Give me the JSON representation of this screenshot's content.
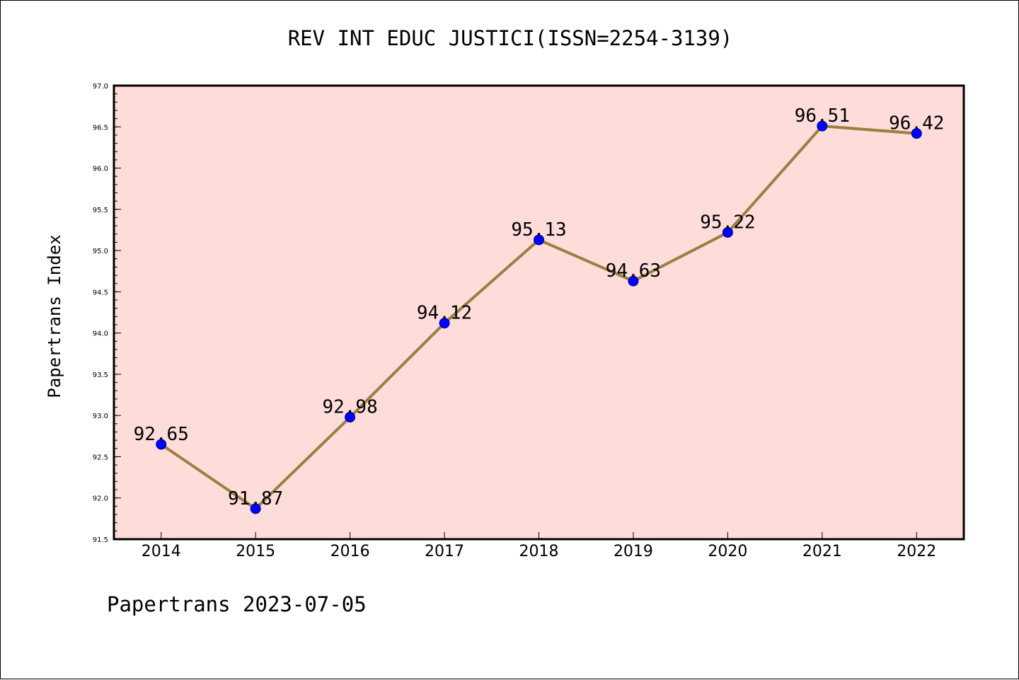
{
  "chart_data": {
    "type": "line",
    "title": "REV INT EDUC JUSTICI(ISSN=2254-3139)",
    "ylabel": "Papertrans Index",
    "xlabel": "",
    "categories": [
      "2014",
      "2015",
      "2016",
      "2017",
      "2018",
      "2019",
      "2020",
      "2021",
      "2022"
    ],
    "series": [
      {
        "values": [
          92.65,
          91.87,
          92.98,
          94.12,
          95.13,
          94.63,
          95.22,
          96.51,
          96.42
        ]
      }
    ],
    "data_labels": [
      "92.65",
      "91.87",
      "92.98",
      "94.12",
      "95.13",
      "94.63",
      "95.22",
      "96.51",
      "96.42"
    ],
    "ylim": [
      91.5,
      97.0
    ],
    "yticks": [
      "91.5",
      "92.0",
      "92.5",
      "93.0",
      "93.5",
      "94.0",
      "94.5",
      "95.0",
      "95.5",
      "96.0",
      "96.5",
      "97.0"
    ],
    "grid": false,
    "colors": {
      "plot_background": "#fddcda",
      "line": "#9a8040",
      "marker": "#0000ff"
    }
  },
  "footer": "Papertrans 2023-07-05"
}
